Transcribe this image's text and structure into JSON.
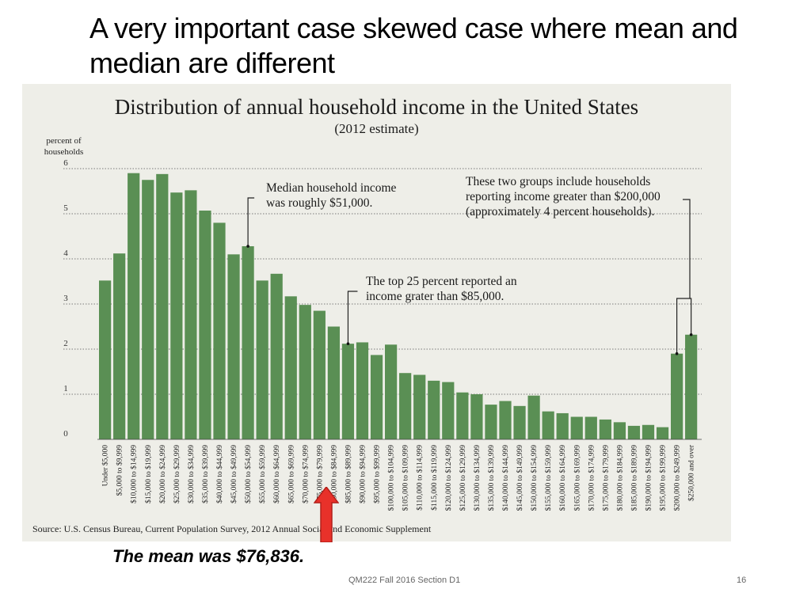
{
  "slide": {
    "title": "A very important case skewed case where mean and median are different",
    "mean_caption": "The mean was $76,836.",
    "footer": "QM222 Fall 2016 Section D1",
    "page_number": "16"
  },
  "colors": {
    "bar": "#5a8f54",
    "background": "#eeeee8",
    "arrow": "#e8312a"
  },
  "chart_data": {
    "type": "bar",
    "title": "Distribution of annual household income in the United States",
    "subtitle": "(2012 estimate)",
    "ylabel": "percent of households",
    "source": "Source: U.S. Census Bureau, Current Population Survey, 2012 Annual Social and Economic Supplement",
    "ylim": [
      0,
      6
    ],
    "yticks": [
      "0",
      "1",
      "2",
      "3",
      "4",
      "5",
      "6"
    ],
    "grid": true,
    "categories": [
      "Under $5,000",
      "$5,000 to $9,999",
      "$10,000 to $14,999",
      "$15,000 to $19,999",
      "$20,000 to $24,999",
      "$25,000 to $29,999",
      "$30,000 to $34,999",
      "$35,000 to $39,999",
      "$40,000 to $44,999",
      "$45,000 to $49,999",
      "$50,000 to $54,999",
      "$55,000 to $59,999",
      "$60,000 to $64,999",
      "$65,000 to $69,999",
      "$70,000 to $74,999",
      "$75,000 to $79,999",
      "$80,000 to $84,999",
      "$85,000 to $89,999",
      "$90,000 to $94,999",
      "$95,000 to $99,999",
      "$100,000 to $104,999",
      "$105,000 to $109,999",
      "$110,000 to $114,999",
      "$115,000 to $119,999",
      "$120,000 to $124,999",
      "$125,000 to $129,999",
      "$130,000 to $134,999",
      "$135,000 to $139,999",
      "$140,000 to $144,999",
      "$145,000 to $149,999",
      "$150,000 to $154,999",
      "$155,000 to $159,999",
      "$160,000 to $164,999",
      "$165,000 to $169,999",
      "$170,000 to $174,999",
      "$175,000 to $179,999",
      "$180,000 to $184,999",
      "$185,000 to $189,999",
      "$190,000 to $194,999",
      "$195,000 to $199,999",
      "$200,000 to $249,999",
      "$250,000 and over"
    ],
    "values": [
      3.52,
      4.12,
      5.9,
      5.75,
      5.88,
      5.47,
      5.52,
      5.07,
      4.8,
      4.1,
      4.28,
      3.52,
      3.67,
      3.17,
      2.98,
      2.85,
      2.5,
      2.12,
      2.15,
      1.87,
      2.1,
      1.47,
      1.43,
      1.3,
      1.27,
      1.04,
      1.0,
      0.77,
      0.85,
      0.74,
      0.97,
      0.62,
      0.58,
      0.5,
      0.5,
      0.44,
      0.38,
      0.3,
      0.32,
      0.27,
      1.9,
      2.32
    ],
    "annotations": [
      {
        "text": [
          "Median household income",
          "was roughly $51,000."
        ]
      },
      {
        "text": [
          "The top 25 percent reported an",
          "income grater than $85,000."
        ]
      },
      {
        "text": [
          "These two groups include households",
          "reporting income greater than $200,000",
          "(approximately 4 percent households)."
        ]
      }
    ]
  }
}
